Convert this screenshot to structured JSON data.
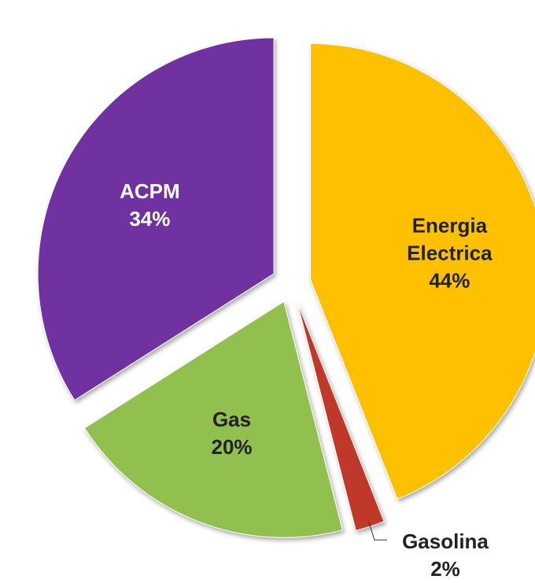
{
  "chart_data": {
    "type": "pie",
    "categories": [
      "Energia Electrica",
      "Gasolina",
      "Gas",
      "ACPM"
    ],
    "values": [
      44,
      2,
      20,
      34
    ],
    "value_labels": [
      "44%",
      "2%",
      "20%",
      "34%"
    ],
    "colors": [
      "#ffc000",
      "#c0392b",
      "#92c050",
      "#7030a0"
    ]
  }
}
